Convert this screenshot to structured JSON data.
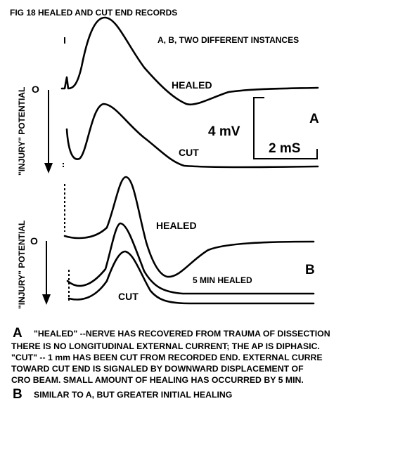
{
  "figure": {
    "title": "FIG 18    HEALED AND CUT END RECORDS",
    "note": "A, B, TWO  DIFFERENT INSTANCES"
  },
  "panel_a": {
    "zero_label": "O",
    "axis_label": "\"INJURY\" POTENTIAL",
    "healed_label": "HEALED",
    "cut_label": "CUT",
    "scale_voltage": "4 mV",
    "scale_time": "2 mS",
    "panel_letter": "A"
  },
  "panel_b": {
    "zero_label": "O",
    "axis_label": "\"INJURY\" POTENTIAL",
    "healed_label": "HEALED",
    "five_min_label": "5 MIN HEALED",
    "cut_label": "CUT",
    "panel_letter": "B"
  },
  "caption": {
    "a_letter": "A",
    "a_line1": "\"HEALED\" --NERVE HAS RECOVERED FROM TRAUMA OF DISSECTION",
    "a_line2": "THERE IS NO LONGITUDINAL EXTERNAL CURRENT; THE AP IS DIPHASIC.",
    "a_line3": "\"CUT\" -- 1 mm HAS BEEN CUT FROM   RECORDED END.  EXTERNAL CURRE",
    "a_line4": "TOWARD CUT END IS SIGNALED BY  DOWNWARD DISPLACEMENT OF",
    "a_line5": "CRO BEAM.  SMALL AMOUNT OF HEALING HAS OCCURRED BY 5 MIN.",
    "b_letter": "B",
    "b_line1": "SIMILAR TO A, BUT GREATER INITIAL HEALING"
  }
}
